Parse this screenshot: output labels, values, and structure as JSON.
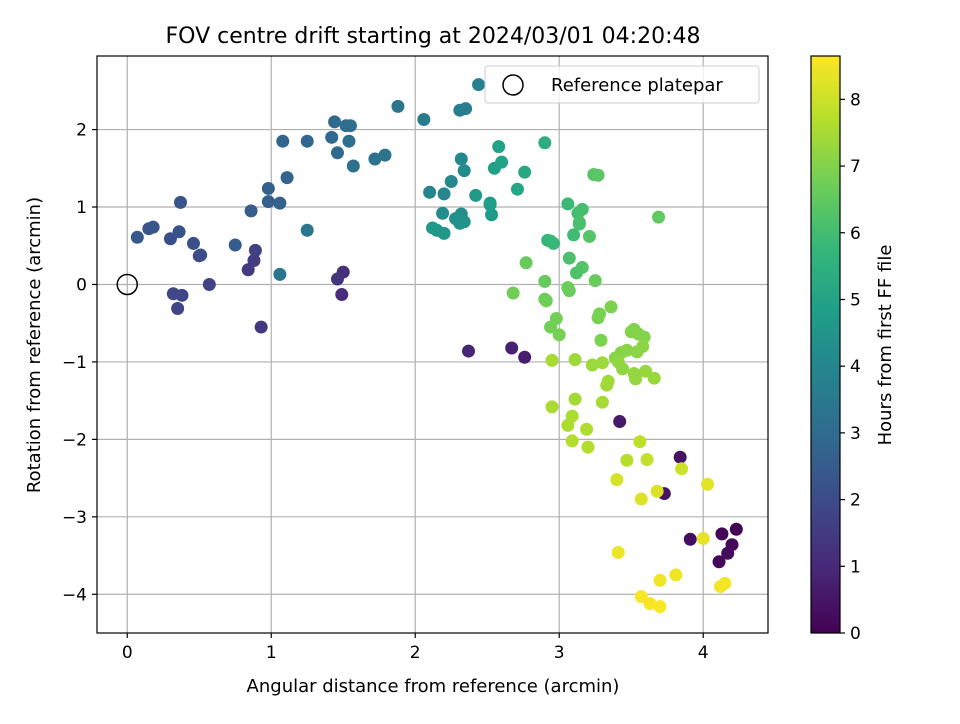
{
  "chart_data": {
    "type": "scatter",
    "title": "FOV centre drift starting at 2024/03/01 04:20:48",
    "xlabel": "Angular distance from reference (arcmin)",
    "ylabel": "Rotation from reference (arcmin)",
    "xlim": [
      -0.21,
      4.45
    ],
    "ylim": [
      -4.5,
      2.95
    ],
    "xticks": [
      0,
      1,
      2,
      3,
      4
    ],
    "yticks": [
      -4,
      -3,
      -2,
      -1,
      0,
      1,
      2
    ],
    "grid": true,
    "legend": {
      "placement": "top-right",
      "entries": [
        {
          "label": "Reference platepar",
          "marker": "open-circle"
        }
      ]
    },
    "reference_point": {
      "x": 0,
      "y": 0
    },
    "colorbar": {
      "label": "Hours from first FF file",
      "min": 0,
      "max": 8.65,
      "ticks": [
        0,
        1,
        2,
        3,
        4,
        5,
        6,
        7,
        8
      ],
      "colormap": "viridis"
    },
    "points": [
      {
        "x": 4.13,
        "y": -3.22,
        "c": 0.1
      },
      {
        "x": 4.23,
        "y": -3.16,
        "c": 0.1
      },
      {
        "x": 4.11,
        "y": -3.58,
        "c": 0.15
      },
      {
        "x": 4.2,
        "y": -3.36,
        "c": 0.2
      },
      {
        "x": 4.17,
        "y": -3.47,
        "c": 0.25
      },
      {
        "x": 3.91,
        "y": -3.29,
        "c": 0.35
      },
      {
        "x": 3.84,
        "y": -2.23,
        "c": 0.45
      },
      {
        "x": 3.73,
        "y": -2.7,
        "c": 0.5
      },
      {
        "x": 3.42,
        "y": -1.77,
        "c": 0.6
      },
      {
        "x": 2.76,
        "y": -0.94,
        "c": 0.7
      },
      {
        "x": 2.67,
        "y": -0.82,
        "c": 0.8
      },
      {
        "x": 2.37,
        "y": -0.86,
        "c": 0.9
      },
      {
        "x": 1.49,
        "y": -0.13,
        "c": 1.1
      },
      {
        "x": 1.5,
        "y": 0.16,
        "c": 1.2
      },
      {
        "x": 1.46,
        "y": 0.07,
        "c": 1.3
      },
      {
        "x": 0.93,
        "y": -0.55,
        "c": 1.4
      },
      {
        "x": 0.84,
        "y": 0.19,
        "c": 1.5
      },
      {
        "x": 0.88,
        "y": 0.31,
        "c": 1.55
      },
      {
        "x": 0.89,
        "y": 0.44,
        "c": 1.65
      },
      {
        "x": 0.57,
        "y": 0.0,
        "c": 1.75
      },
      {
        "x": 0.35,
        "y": -0.31,
        "c": 1.8
      },
      {
        "x": 0.32,
        "y": -0.12,
        "c": 1.85
      },
      {
        "x": 0.38,
        "y": -0.14,
        "c": 1.9
      },
      {
        "x": 0.5,
        "y": 0.37,
        "c": 2.0
      },
      {
        "x": 0.51,
        "y": 0.38,
        "c": 2.05
      },
      {
        "x": 0.46,
        "y": 0.53,
        "c": 2.1
      },
      {
        "x": 0.3,
        "y": 0.59,
        "c": 2.15
      },
      {
        "x": 0.36,
        "y": 0.68,
        "c": 2.2
      },
      {
        "x": 0.37,
        "y": 1.06,
        "c": 2.25
      },
      {
        "x": 0.15,
        "y": 0.72,
        "c": 2.3
      },
      {
        "x": 0.18,
        "y": 0.74,
        "c": 2.35
      },
      {
        "x": 0.07,
        "y": 0.61,
        "c": 2.4
      },
      {
        "x": 0.75,
        "y": 0.51,
        "c": 2.5
      },
      {
        "x": 0.86,
        "y": 0.95,
        "c": 2.55
      },
      {
        "x": 0.98,
        "y": 1.07,
        "c": 2.6
      },
      {
        "x": 0.98,
        "y": 1.24,
        "c": 2.65
      },
      {
        "x": 1.06,
        "y": 1.05,
        "c": 2.7
      },
      {
        "x": 1.11,
        "y": 1.38,
        "c": 2.75
      },
      {
        "x": 1.08,
        "y": 1.85,
        "c": 2.8
      },
      {
        "x": 1.25,
        "y": 1.85,
        "c": 2.85
      },
      {
        "x": 1.42,
        "y": 1.9,
        "c": 2.9
      },
      {
        "x": 1.44,
        "y": 2.1,
        "c": 2.95
      },
      {
        "x": 1.46,
        "y": 1.7,
        "c": 3.0
      },
      {
        "x": 1.52,
        "y": 2.05,
        "c": 3.05
      },
      {
        "x": 1.55,
        "y": 2.05,
        "c": 3.1
      },
      {
        "x": 1.54,
        "y": 1.85,
        "c": 3.15
      },
      {
        "x": 1.57,
        "y": 1.53,
        "c": 3.2
      },
      {
        "x": 1.72,
        "y": 1.62,
        "c": 3.25
      },
      {
        "x": 1.79,
        "y": 1.67,
        "c": 3.3
      },
      {
        "x": 1.88,
        "y": 2.3,
        "c": 3.35
      },
      {
        "x": 1.06,
        "y": 0.13,
        "c": 3.4
      },
      {
        "x": 1.25,
        "y": 0.7,
        "c": 3.45
      },
      {
        "x": 2.06,
        "y": 2.13,
        "c": 3.6
      },
      {
        "x": 2.31,
        "y": 2.25,
        "c": 3.7
      },
      {
        "x": 2.35,
        "y": 2.27,
        "c": 3.75
      },
      {
        "x": 2.44,
        "y": 2.58,
        "c": 3.8
      },
      {
        "x": 2.1,
        "y": 1.19,
        "c": 3.9
      },
      {
        "x": 2.2,
        "y": 1.17,
        "c": 4.0
      },
      {
        "x": 2.25,
        "y": 1.33,
        "c": 4.05
      },
      {
        "x": 2.32,
        "y": 1.62,
        "c": 4.1
      },
      {
        "x": 2.34,
        "y": 1.47,
        "c": 4.15
      },
      {
        "x": 2.19,
        "y": 0.92,
        "c": 4.2
      },
      {
        "x": 2.28,
        "y": 0.85,
        "c": 4.25
      },
      {
        "x": 2.32,
        "y": 0.91,
        "c": 4.3
      },
      {
        "x": 2.31,
        "y": 0.79,
        "c": 4.35
      },
      {
        "x": 2.34,
        "y": 0.81,
        "c": 4.4
      },
      {
        "x": 2.15,
        "y": 0.7,
        "c": 4.5
      },
      {
        "x": 2.2,
        "y": 0.66,
        "c": 4.55
      },
      {
        "x": 2.12,
        "y": 0.73,
        "c": 4.6
      },
      {
        "x": 2.42,
        "y": 1.15,
        "c": 4.65
      },
      {
        "x": 2.52,
        "y": 1.05,
        "c": 4.7
      },
      {
        "x": 2.53,
        "y": 0.9,
        "c": 4.75
      },
      {
        "x": 2.52,
        "y": 1.03,
        "c": 4.8
      },
      {
        "x": 2.55,
        "y": 1.5,
        "c": 4.9
      },
      {
        "x": 2.6,
        "y": 1.58,
        "c": 4.95
      },
      {
        "x": 2.58,
        "y": 1.78,
        "c": 5.0
      },
      {
        "x": 2.71,
        "y": 1.23,
        "c": 5.1
      },
      {
        "x": 2.76,
        "y": 1.45,
        "c": 5.2
      },
      {
        "x": 2.9,
        "y": 1.83,
        "c": 5.4
      },
      {
        "x": 2.92,
        "y": 0.57,
        "c": 5.7
      },
      {
        "x": 2.94,
        "y": 0.56,
        "c": 5.75
      },
      {
        "x": 2.96,
        "y": 0.53,
        "c": 5.8
      },
      {
        "x": 3.06,
        "y": 1.04,
        "c": 5.85
      },
      {
        "x": 3.1,
        "y": 0.64,
        "c": 5.95
      },
      {
        "x": 3.13,
        "y": 0.92,
        "c": 6.0
      },
      {
        "x": 3.16,
        "y": 0.97,
        "c": 6.05
      },
      {
        "x": 3.14,
        "y": 0.78,
        "c": 6.1
      },
      {
        "x": 3.14,
        "y": 0.8,
        "c": 6.12
      },
      {
        "x": 3.07,
        "y": 0.34,
        "c": 6.15
      },
      {
        "x": 3.12,
        "y": 0.15,
        "c": 6.2
      },
      {
        "x": 3.16,
        "y": 0.22,
        "c": 6.25
      },
      {
        "x": 3.21,
        "y": 0.62,
        "c": 6.3
      },
      {
        "x": 3.24,
        "y": 1.42,
        "c": 6.35
      },
      {
        "x": 3.27,
        "y": 1.41,
        "c": 6.4
      },
      {
        "x": 3.69,
        "y": 0.87,
        "c": 6.5
      },
      {
        "x": 2.77,
        "y": 0.28,
        "c": 6.6
      },
      {
        "x": 2.9,
        "y": 0.04,
        "c": 6.6
      },
      {
        "x": 3.25,
        "y": 0.05,
        "c": 6.62
      },
      {
        "x": 3.07,
        "y": -0.08,
        "c": 6.65
      },
      {
        "x": 3.06,
        "y": -0.04,
        "c": 6.68
      },
      {
        "x": 2.9,
        "y": -0.19,
        "c": 6.7
      },
      {
        "x": 2.91,
        "y": -0.21,
        "c": 6.72
      },
      {
        "x": 2.68,
        "y": -0.11,
        "c": 6.75
      },
      {
        "x": 2.94,
        "y": -0.55,
        "c": 6.78
      },
      {
        "x": 2.98,
        "y": -0.44,
        "c": 6.8
      },
      {
        "x": 3.0,
        "y": -0.65,
        "c": 6.82
      },
      {
        "x": 3.27,
        "y": -0.43,
        "c": 6.85
      },
      {
        "x": 3.28,
        "y": -0.38,
        "c": 6.88
      },
      {
        "x": 3.29,
        "y": -0.72,
        "c": 6.9
      },
      {
        "x": 3.36,
        "y": -0.29,
        "c": 6.92
      },
      {
        "x": 3.52,
        "y": -0.58,
        "c": 6.95
      },
      {
        "x": 3.55,
        "y": -0.64,
        "c": 6.98
      },
      {
        "x": 3.59,
        "y": -0.68,
        "c": 7.0
      },
      {
        "x": 3.5,
        "y": -0.61,
        "c": 7.02
      },
      {
        "x": 3.43,
        "y": -0.88,
        "c": 7.05
      },
      {
        "x": 3.39,
        "y": -0.95,
        "c": 7.08
      },
      {
        "x": 3.47,
        "y": -0.85,
        "c": 7.1
      },
      {
        "x": 3.54,
        "y": -0.87,
        "c": 7.12
      },
      {
        "x": 3.58,
        "y": -0.8,
        "c": 7.15
      },
      {
        "x": 3.41,
        "y": -1.0,
        "c": 7.18
      },
      {
        "x": 3.44,
        "y": -1.09,
        "c": 7.2
      },
      {
        "x": 3.52,
        "y": -1.15,
        "c": 7.22
      },
      {
        "x": 3.53,
        "y": -1.22,
        "c": 7.25
      },
      {
        "x": 3.6,
        "y": -1.12,
        "c": 7.28
      },
      {
        "x": 3.66,
        "y": -1.21,
        "c": 7.3
      },
      {
        "x": 3.23,
        "y": -1.04,
        "c": 7.32
      },
      {
        "x": 3.3,
        "y": -1.01,
        "c": 7.35
      },
      {
        "x": 3.11,
        "y": -0.97,
        "c": 7.38
      },
      {
        "x": 3.34,
        "y": -1.25,
        "c": 7.4
      },
      {
        "x": 3.33,
        "y": -1.3,
        "c": 7.42
      },
      {
        "x": 3.11,
        "y": -1.48,
        "c": 7.45
      },
      {
        "x": 3.3,
        "y": -1.52,
        "c": 7.48
      },
      {
        "x": 2.95,
        "y": -0.98,
        "c": 7.5
      },
      {
        "x": 2.95,
        "y": -1.58,
        "c": 7.52
      },
      {
        "x": 3.09,
        "y": -1.7,
        "c": 7.55
      },
      {
        "x": 3.06,
        "y": -1.82,
        "c": 7.58
      },
      {
        "x": 3.19,
        "y": -1.87,
        "c": 7.6
      },
      {
        "x": 3.09,
        "y": -2.02,
        "c": 7.62
      },
      {
        "x": 3.2,
        "y": -2.1,
        "c": 7.65
      },
      {
        "x": 3.47,
        "y": -2.27,
        "c": 7.68
      },
      {
        "x": 3.56,
        "y": -2.03,
        "c": 7.8
      },
      {
        "x": 3.61,
        "y": -2.26,
        "c": 7.9
      },
      {
        "x": 3.85,
        "y": -2.38,
        "c": 8.0
      },
      {
        "x": 3.4,
        "y": -2.52,
        "c": 8.1
      },
      {
        "x": 3.68,
        "y": -2.67,
        "c": 8.2
      },
      {
        "x": 3.57,
        "y": -2.77,
        "c": 8.25
      },
      {
        "x": 4.03,
        "y": -2.58,
        "c": 8.3
      },
      {
        "x": 4.0,
        "y": -3.28,
        "c": 8.35
      },
      {
        "x": 3.41,
        "y": -3.46,
        "c": 8.4
      },
      {
        "x": 3.81,
        "y": -3.75,
        "c": 8.45
      },
      {
        "x": 3.7,
        "y": -3.82,
        "c": 8.48
      },
      {
        "x": 4.15,
        "y": -3.86,
        "c": 8.5
      },
      {
        "x": 4.12,
        "y": -3.9,
        "c": 8.52
      },
      {
        "x": 3.57,
        "y": -4.03,
        "c": 8.55
      },
      {
        "x": 3.63,
        "y": -4.12,
        "c": 8.58
      },
      {
        "x": 3.7,
        "y": -4.16,
        "c": 8.6
      }
    ]
  }
}
